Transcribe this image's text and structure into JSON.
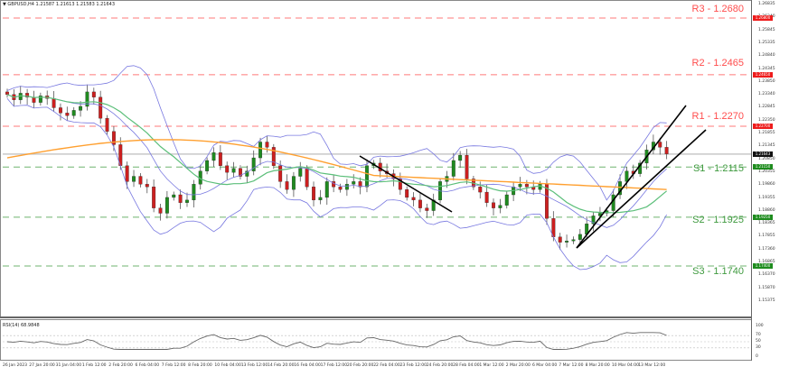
{
  "header": {
    "symbol_line": "▼ GBPUSD,H4  1.21587 1.21613 1.21583 1.21643"
  },
  "rsi": {
    "label": "RSI(14) 68.9848",
    "levels": [
      "100",
      "70",
      "50",
      "30",
      "0"
    ]
  },
  "levels": {
    "r3": {
      "label": "R3 - 1.2680",
      "value": 1.268,
      "color": "#ff4d4d"
    },
    "r2": {
      "label": "R2 - 1.2465",
      "value": 1.2465,
      "color": "#ff4d4d"
    },
    "r1": {
      "label": "R1 - 1.2270",
      "value": 1.227,
      "color": "#ff4d4d"
    },
    "s1": {
      "label": "S1 - 1.2115",
      "value": 1.2115,
      "color": "#3f9a3f"
    },
    "s2": {
      "label": "S2 - 1.1925",
      "value": 1.1925,
      "color": "#3f9a3f"
    },
    "s3": {
      "label": "S3 - 1.1740",
      "value": 1.174,
      "color": "#3f9a3f"
    }
  },
  "price_axis": {
    "ticks": [
      "1.26835",
      "1.26340",
      "1.25845",
      "1.25335",
      "1.24840",
      "1.24345",
      "1.23850",
      "1.23340",
      "1.22845",
      "1.22350",
      "1.21855",
      "1.21345",
      "1.20850",
      "1.20355",
      "1.19860",
      "1.19355",
      "1.18860",
      "1.18365",
      "1.17855",
      "1.17360",
      "1.16865",
      "1.16370",
      "1.15870",
      "1.15375"
    ],
    "current_price_tag": "1.21643",
    "tags": {
      "r3": "1.26800",
      "r2": "1.24650",
      "r1": "1.22700",
      "s1": "1.21150",
      "s2": "1.19250",
      "s3": "1.17400"
    }
  },
  "time_axis": {
    "labels": [
      "26 Jan 2023",
      "27 Jan 20:00",
      "31 Jan 04:00",
      "1 Feb 12:00",
      "2 Feb 20:00",
      "6 Feb 04:00",
      "7 Feb 12:00",
      "8 Feb 20:00",
      "10 Feb 04:00",
      "13 Feb 12:00",
      "14 Feb 20:00",
      "16 Feb 04:00",
      "17 Feb 12:00",
      "20 Feb 20:00",
      "22 Feb 04:00",
      "23 Feb 12:00",
      "24 Feb 20:00",
      "28 Feb 04:00",
      "1 Mar 12:00",
      "2 Mar 20:00",
      "6 Mar 04:00",
      "7 Mar 12:00",
      "8 Mar 20:00",
      "10 Mar 04:00",
      "13 Mar 12:00"
    ]
  },
  "colors": {
    "bull": "#1f8a1f",
    "bear": "#cc1f1f",
    "wick": "#555555",
    "bollinger": "#7878e0",
    "ma_mid": "#5cbf7a",
    "ma_long": "#ffa030",
    "trendline": "#000000",
    "current_line": "#c8c8c8"
  },
  "chart_data": {
    "type": "candlestick",
    "title": "GBPUSD,H4",
    "symbol": "GBPUSD",
    "timeframe": "H4",
    "ylim": [
      1.153,
      1.27
    ],
    "x_range": [
      "26 Jan 2023",
      "13 Mar 2023"
    ],
    "horizontal_levels": [
      {
        "name": "R3",
        "value": 1.268
      },
      {
        "name": "R2",
        "value": 1.2465
      },
      {
        "name": "R1",
        "value": 1.227
      },
      {
        "name": "S1",
        "value": 1.2115
      },
      {
        "name": "S2",
        "value": 1.1925
      },
      {
        "name": "S3",
        "value": 1.174
      }
    ],
    "current_price": 1.21643,
    "close_path": [
      1.239,
      1.237,
      1.2395,
      1.238,
      1.236,
      1.2385,
      1.2375,
      1.234,
      1.232,
      1.231,
      1.233,
      1.2345,
      1.24,
      1.238,
      1.23,
      1.225,
      1.22,
      1.212,
      1.206,
      1.208,
      1.205,
      1.204,
      1.196,
      1.194,
      1.2,
      1.201,
      1.198,
      1.199,
      1.205,
      1.21,
      1.214,
      1.217,
      1.212,
      1.2095,
      1.211,
      1.208,
      1.21,
      1.215,
      1.221,
      1.219,
      1.212,
      1.206,
      1.203,
      1.208,
      1.211,
      1.204,
      1.199,
      1.2,
      1.206,
      1.204,
      1.203,
      1.205,
      1.206,
      1.204,
      1.212,
      1.213,
      1.21,
      1.209,
      1.207,
      1.203,
      1.2,
      1.199,
      1.196,
      1.195,
      1.199,
      1.206,
      1.208,
      1.214,
      1.216,
      1.207,
      1.204,
      1.202,
      1.198,
      1.196,
      1.197,
      1.201,
      1.204,
      1.205,
      1.204,
      1.203,
      1.205,
      1.192,
      1.185,
      1.183,
      1.1835,
      1.184,
      1.186,
      1.19,
      1.193,
      1.194,
      1.195,
      1.201,
      1.206,
      1.21,
      1.209,
      1.213,
      1.218,
      1.221,
      1.219,
      1.2165
    ],
    "indicators": [
      "Bollinger Bands(20)",
      "MA(50)",
      "MA(200)"
    ],
    "trendlines": [
      {
        "from": [
          "20 Feb",
          1.214
        ],
        "to": [
          "24 Feb",
          1.195
        ],
        "direction": "down"
      },
      {
        "from": [
          "7 Mar",
          1.184
        ],
        "to": [
          "13 Mar+",
          1.234
        ],
        "direction": "up-steep"
      },
      {
        "from": [
          "7 Mar",
          1.184
        ],
        "to": [
          "13 Mar+",
          1.225
        ],
        "direction": "up-shallow"
      }
    ],
    "rsi": {
      "period": 14,
      "value": 68.9848,
      "ylim": [
        0,
        100
      ],
      "levels": [
        30,
        50,
        70
      ]
    }
  }
}
